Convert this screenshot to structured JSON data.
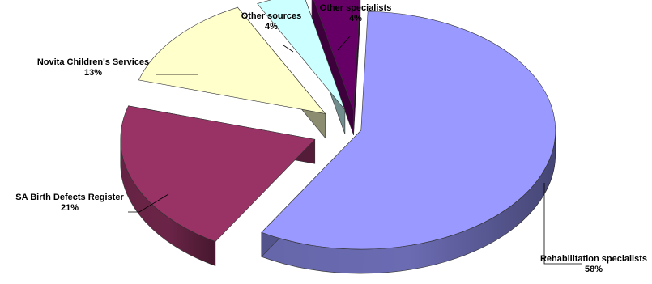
{
  "chart_data": {
    "type": "pie",
    "style": "3d-exploded",
    "title": "",
    "categories": [
      "Rehabilitation specialists",
      "SA Birth Defects Register",
      "Novita Children's Services",
      "Other sources",
      "Other specialists"
    ],
    "values": [
      58,
      21,
      13,
      4,
      4
    ],
    "value_labels": [
      "58%",
      "21%",
      "13%",
      "4%",
      "4%"
    ],
    "colors": [
      "#9999ff",
      "#993366",
      "#ffffcc",
      "#ccffff",
      "#660066"
    ],
    "legend": "none",
    "data_labels": "outside-with-leader-lines"
  }
}
